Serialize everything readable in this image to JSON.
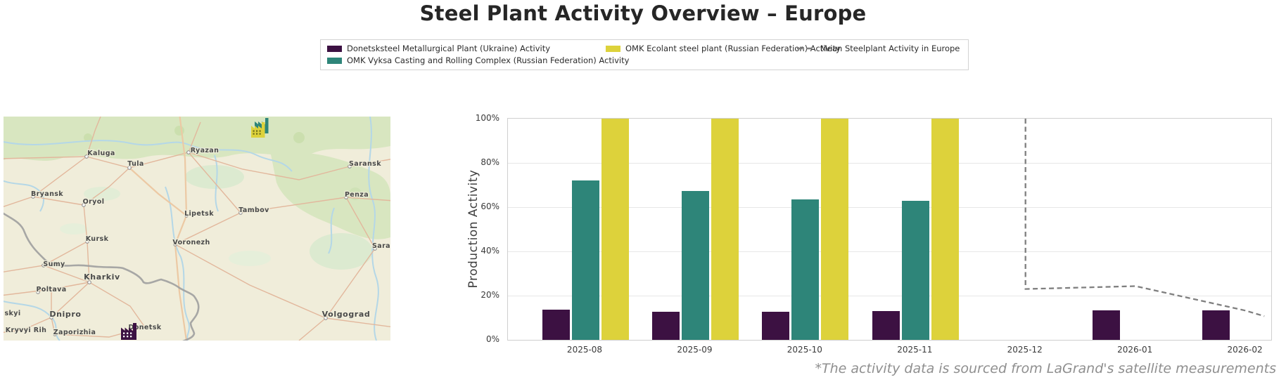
{
  "header": {
    "title": "Steel Plant Activity Overview – Europe"
  },
  "legend": {
    "items": [
      {
        "label": "Donetsksteel Metallurgical Plant (Ukraine) Activity",
        "color": "#3c1142",
        "type": "patch"
      },
      {
        "label": "OMK Vyksa Casting and Rolling Complex (Russian Federation) Activity",
        "color": "#2e8579",
        "type": "patch"
      },
      {
        "label": "OMK Ecolant steel plant (Russian Federation) Activity",
        "color": "#ddd23b",
        "type": "patch"
      },
      {
        "label": "Mean Steelplant Activity in Europe",
        "color": "#7f7f7f",
        "type": "dashed-line"
      }
    ]
  },
  "map": {
    "cities": [
      "Kaluga",
      "Tula",
      "Ryazan",
      "Saransk",
      "Bryansk",
      "Oryol",
      "Penza",
      "Lipetsk",
      "Tambov",
      "Kursk",
      "Voronezh",
      "Sara",
      "Sumy",
      "Kharkiv",
      "Poltava",
      "Dnipro",
      "Kryvyi Rih",
      "Zaporizhia",
      "Donetsk",
      "Volgograd",
      "skyi"
    ],
    "factories": [
      {
        "name": "OMK Vyksa / Ecolant plant marker",
        "colors": [
          "#ddd23b",
          "#2e8579"
        ]
      },
      {
        "name": "Donetsksteel plant marker",
        "colors": [
          "#3c1142"
        ]
      }
    ]
  },
  "chart_data": {
    "type": "bar",
    "title": "",
    "xlabel": "",
    "ylabel": "Production Activity",
    "categories": [
      "2025-08",
      "2025-09",
      "2025-10",
      "2025-11",
      "2025-12",
      "2026-01",
      "2026-02"
    ],
    "series": [
      {
        "name": "Donetsksteel Metallurgical Plant (Ukraine) Activity",
        "color": "#3c1142",
        "values": [
          13.5,
          12.8,
          12.8,
          13.0,
          null,
          13.3,
          13.3
        ]
      },
      {
        "name": "OMK Vyksa Casting and Rolling Complex (Russian Federation) Activity",
        "color": "#2e8579",
        "values": [
          72.0,
          67.3,
          63.5,
          63.0,
          null,
          null,
          null
        ]
      },
      {
        "name": "OMK Ecolant steel plant (Russian Federation) Activity",
        "color": "#ddd23b",
        "values": [
          100,
          100,
          100,
          100,
          null,
          null,
          null
        ]
      }
    ],
    "mean_line": {
      "name": "Mean Steelplant Activity in Europe",
      "color": "#7f7f7f",
      "style": "dashed",
      "points": [
        {
          "x": 4,
          "value": 100
        },
        {
          "x": 4,
          "value": 23
        },
        {
          "x": 5,
          "value": 24.3
        },
        {
          "x": 6,
          "value": 13.2
        },
        {
          "x": 6.17,
          "value": 10.7
        }
      ]
    },
    "y_ticks": [
      {
        "value": 0,
        "label": "0%"
      },
      {
        "value": 20,
        "label": "20%"
      },
      {
        "value": 40,
        "label": "40%"
      },
      {
        "value": 60,
        "label": "60%"
      },
      {
        "value": 80,
        "label": "80%"
      },
      {
        "value": 100,
        "label": "100%"
      }
    ],
    "ylim": [
      0,
      100
    ],
    "grid": true,
    "legend_position": "top-center"
  },
  "footnote": {
    "text": "*The activity data is sourced from LaGrand's satellite measurements"
  }
}
